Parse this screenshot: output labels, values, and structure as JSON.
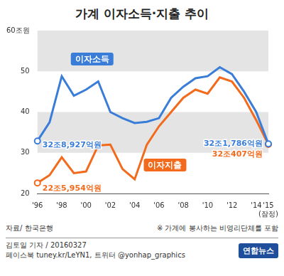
{
  "chart_data": {
    "type": "line",
    "title": "가계 이자소득·지출 추이",
    "categories": [
      "'96",
      null,
      "'98",
      null,
      "'00",
      null,
      "'02",
      null,
      "'04",
      null,
      "'06",
      null,
      "'08",
      null,
      "'10",
      null,
      "'12",
      null,
      "'14",
      "'15 (잠정)"
    ],
    "series": [
      {
        "name": "이자소득",
        "color": "#3a7dd8",
        "values": [
          32.8927,
          37.5,
          48.8,
          44,
          45.5,
          47.5,
          40,
          38.5,
          37.3,
          37.6,
          38.5,
          43.5,
          46.2,
          48.3,
          48.8,
          51,
          49.3,
          45,
          40,
          32.1786
        ],
        "value_labels": [
          "32조8,927억원",
          null,
          null,
          null,
          null,
          null,
          null,
          null,
          null,
          null,
          null,
          null,
          null,
          null,
          null,
          null,
          null,
          null,
          null,
          "32조1,786억원"
        ]
      },
      {
        "name": "이자지출",
        "color": "#f26a1b",
        "values": [
          22.5954,
          24.5,
          28.9,
          25,
          25.4,
          31.8,
          32,
          26,
          23.5,
          32,
          36.5,
          40,
          43.5,
          45.5,
          44.5,
          48.5,
          47.5,
          43.5,
          38,
          32.0407
        ],
        "value_labels": [
          "22조5,954억원",
          null,
          null,
          null,
          null,
          null,
          null,
          null,
          null,
          null,
          null,
          null,
          null,
          null,
          null,
          null,
          null,
          null,
          null,
          "32조407억원"
        ]
      }
    ],
    "ylim": [
      20,
      60
    ],
    "yticks": [
      20,
      30,
      40,
      50,
      {
        "value": 60,
        "label": "60조원"
      }
    ],
    "grid": true,
    "data_labels": true,
    "source": "자료/ 한국은행",
    "note": "※ 가계에 봉사하는 비영리단체를 포함",
    "credits": [
      "김토일 기자 / 20160327",
      "페이스북 tuney.kr/LeYN1, 트위터 @yonhap_graphics"
    ],
    "logo": "연합뉴스"
  }
}
